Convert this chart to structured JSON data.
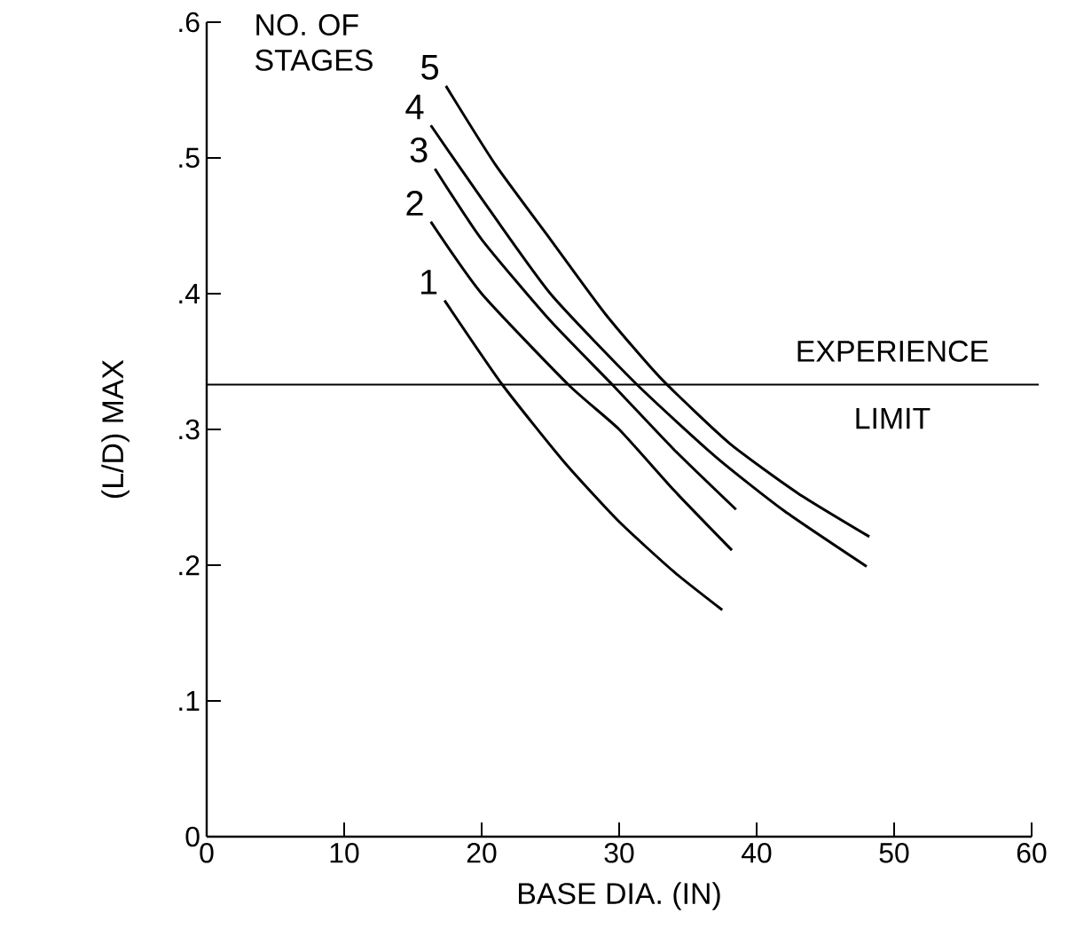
{
  "chart_data": {
    "type": "line",
    "xlabel": "BASE DIA. (IN)",
    "ylabel": "(L/D) MAX",
    "legend_title": "NO. OF STAGES",
    "xlim": [
      0,
      60
    ],
    "ylim": [
      0,
      0.6
    ],
    "xticks": [
      0,
      10,
      20,
      30,
      40,
      50,
      60
    ],
    "yticks": [
      {
        "value": 0,
        "label": "0"
      },
      {
        "value": 0.1,
        "label": ".1"
      },
      {
        "value": 0.2,
        "label": ".2"
      },
      {
        "value": 0.3,
        "label": ".3"
      },
      {
        "value": 0.4,
        "label": ".4"
      },
      {
        "value": 0.5,
        "label": ".5"
      },
      {
        "value": 0.6,
        "label": ".6"
      }
    ],
    "grid": false,
    "legend": false,
    "marker": "none",
    "line_style": "solid",
    "ref_lines": [
      {
        "axis": "y",
        "value": 0.333,
        "label": "EXPERIENCE LIMIT",
        "color": "#000000"
      }
    ],
    "series": [
      {
        "name": "1",
        "color": "#000000",
        "x": [
          17.3,
          21.5,
          26,
          30,
          34,
          37.5
        ],
        "values": [
          0.395,
          0.333,
          0.276,
          0.232,
          0.195,
          0.167
        ]
      },
      {
        "name": "2",
        "color": "#000000",
        "x": [
          16.3,
          20,
          26.3,
          30,
          34,
          38.2
        ],
        "values": [
          0.453,
          0.4,
          0.333,
          0.3,
          0.255,
          0.211
        ]
      },
      {
        "name": "3",
        "color": "#000000",
        "x": [
          16.6,
          20,
          25,
          29.5,
          34,
          38.5
        ],
        "values": [
          0.492,
          0.44,
          0.38,
          0.333,
          0.285,
          0.241
        ]
      },
      {
        "name": "4",
        "color": "#000000",
        "x": [
          16.3,
          20,
          25,
          31.3,
          37,
          42,
          48
        ],
        "values": [
          0.524,
          0.47,
          0.4,
          0.333,
          0.28,
          0.24,
          0.199
        ]
      },
      {
        "name": "5",
        "color": "#000000",
        "x": [
          17.4,
          21,
          25,
          29,
          33,
          38,
          43,
          48.2
        ],
        "values": [
          0.553,
          0.495,
          0.44,
          0.385,
          0.338,
          0.29,
          0.253,
          0.221
        ]
      }
    ]
  }
}
